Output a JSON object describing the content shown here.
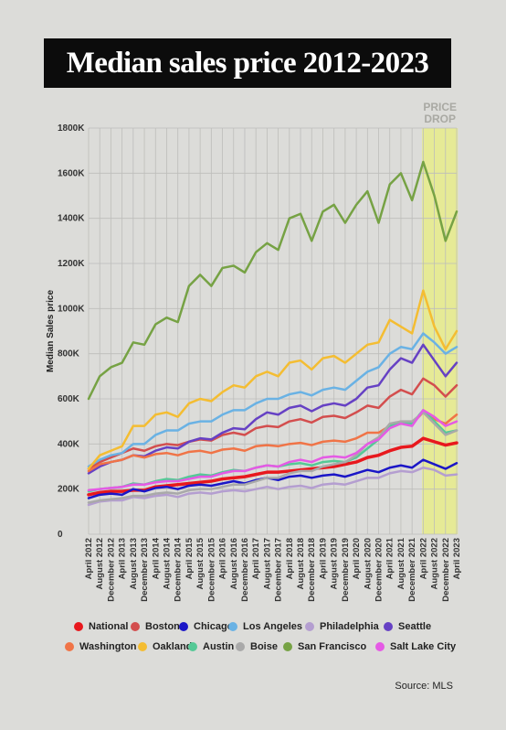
{
  "title": "Median sales price 2012-2023",
  "source": "Source: MLS",
  "chart_data": {
    "type": "line",
    "ylabel": "Median Sales price",
    "xlabel": "",
    "ylim": [
      0,
      1800000
    ],
    "yticks": [
      0,
      200000,
      400000,
      600000,
      800000,
      1000000,
      1200000,
      1400000,
      1600000,
      1800000
    ],
    "ytick_labels": [
      "0",
      "200K",
      "400K",
      "600K",
      "800K",
      "1000K",
      "1200K",
      "1400K",
      "1600K",
      "1800K"
    ],
    "xtick_labels": [
      "April 2012",
      "August 2012",
      "December 2012",
      "April 2013",
      "August 2013",
      "December 2013",
      "April 2014",
      "August 2014",
      "December 2014",
      "April 2015",
      "August 2015",
      "December 2015",
      "April 2016",
      "August 2016",
      "December 2016",
      "April 2017",
      "August 2017",
      "December 2017",
      "April 2018",
      "August 2018",
      "December 2018",
      "April 2019",
      "August 2019",
      "December 2019",
      "April 2020",
      "August 2020",
      "December 2020",
      "April 2021",
      "August 2021",
      "December 2021",
      "April 2022",
      "August 2022",
      "December 2022",
      "April 2023"
    ],
    "grid": true,
    "legend_position": "bottom",
    "highlight": {
      "label": "PRICE DROP",
      "from": "April 2022",
      "to": "April 2023",
      "color": "#e7eb8e"
    },
    "series": [
      {
        "name": "National",
        "color": "#e8181d",
        "values": [
          175000,
          185000,
          190000,
          190000,
          195000,
          195000,
          210000,
          215000,
          220000,
          225000,
          230000,
          235000,
          245000,
          250000,
          255000,
          265000,
          275000,
          275000,
          280000,
          285000,
          290000,
          295000,
          300000,
          310000,
          320000,
          340000,
          350000,
          370000,
          385000,
          390000,
          425000,
          410000,
          395000,
          405000
        ]
      },
      {
        "name": "Boston",
        "color": "#d34e4e",
        "values": [
          290000,
          320000,
          340000,
          360000,
          380000,
          370000,
          390000,
          400000,
          395000,
          410000,
          420000,
          415000,
          440000,
          450000,
          440000,
          470000,
          480000,
          475000,
          500000,
          510000,
          495000,
          520000,
          525000,
          515000,
          540000,
          570000,
          560000,
          610000,
          640000,
          620000,
          690000,
          660000,
          610000,
          660000
        ]
      },
      {
        "name": "Chicago",
        "color": "#1b16c7",
        "values": [
          160000,
          175000,
          180000,
          175000,
          200000,
          190000,
          205000,
          210000,
          200000,
          215000,
          220000,
          215000,
          225000,
          235000,
          225000,
          240000,
          250000,
          240000,
          255000,
          260000,
          250000,
          260000,
          265000,
          255000,
          270000,
          285000,
          275000,
          295000,
          305000,
          295000,
          330000,
          310000,
          290000,
          315000
        ]
      },
      {
        "name": "Los Angeles",
        "color": "#6ab2e4",
        "values": [
          300000,
          330000,
          350000,
          360000,
          400000,
          400000,
          440000,
          460000,
          460000,
          490000,
          500000,
          500000,
          530000,
          550000,
          550000,
          580000,
          600000,
          600000,
          620000,
          630000,
          615000,
          640000,
          650000,
          640000,
          680000,
          720000,
          740000,
          800000,
          830000,
          820000,
          890000,
          850000,
          800000,
          830000
        ]
      },
      {
        "name": "Philadelphia",
        "color": "#b49ed0",
        "values": [
          130000,
          145000,
          150000,
          150000,
          165000,
          160000,
          170000,
          175000,
          165000,
          180000,
          185000,
          180000,
          190000,
          195000,
          190000,
          200000,
          210000,
          200000,
          210000,
          215000,
          205000,
          220000,
          225000,
          220000,
          235000,
          250000,
          250000,
          270000,
          280000,
          275000,
          295000,
          285000,
          260000,
          265000
        ]
      },
      {
        "name": "Seattle",
        "color": "#6641c4",
        "values": [
          270000,
          300000,
          320000,
          330000,
          350000,
          345000,
          370000,
          385000,
          380000,
          410000,
          425000,
          420000,
          450000,
          470000,
          465000,
          510000,
          540000,
          530000,
          560000,
          570000,
          545000,
          570000,
          580000,
          570000,
          600000,
          650000,
          660000,
          730000,
          780000,
          760000,
          840000,
          770000,
          700000,
          760000
        ]
      },
      {
        "name": "Washington",
        "color": "#f07447",
        "values": [
          280000,
          310000,
          320000,
          330000,
          350000,
          340000,
          355000,
          360000,
          350000,
          365000,
          370000,
          360000,
          375000,
          380000,
          370000,
          390000,
          395000,
          390000,
          400000,
          405000,
          395000,
          410000,
          415000,
          410000,
          425000,
          450000,
          450000,
          480000,
          500000,
          490000,
          540000,
          510000,
          490000,
          530000
        ]
      },
      {
        "name": "Oakland",
        "color": "#f4bd32",
        "values": [
          290000,
          350000,
          370000,
          390000,
          480000,
          480000,
          530000,
          540000,
          520000,
          580000,
          600000,
          590000,
          630000,
          660000,
          650000,
          700000,
          720000,
          700000,
          760000,
          770000,
          730000,
          780000,
          790000,
          760000,
          800000,
          840000,
          850000,
          950000,
          920000,
          890000,
          1080000,
          920000,
          820000,
          900000
        ]
      },
      {
        "name": "Austin",
        "color": "#55c996",
        "values": [
          190000,
          200000,
          205000,
          210000,
          225000,
          220000,
          235000,
          245000,
          240000,
          255000,
          265000,
          260000,
          275000,
          285000,
          280000,
          295000,
          305000,
          300000,
          310000,
          315000,
          305000,
          320000,
          325000,
          320000,
          340000,
          380000,
          420000,
          480000,
          500000,
          490000,
          550000,
          500000,
          450000,
          460000
        ]
      },
      {
        "name": "Boise",
        "color": "#a9a9a9",
        "values": [
          140000,
          150000,
          155000,
          160000,
          170000,
          170000,
          180000,
          185000,
          180000,
          195000,
          200000,
          200000,
          210000,
          220000,
          220000,
          235000,
          250000,
          250000,
          270000,
          280000,
          280000,
          300000,
          310000,
          320000,
          350000,
          400000,
          430000,
          490000,
          500000,
          500000,
          540000,
          490000,
          440000,
          460000
        ]
      },
      {
        "name": "San Francisco",
        "color": "#76a244",
        "values": [
          600000,
          700000,
          740000,
          760000,
          850000,
          840000,
          930000,
          960000,
          940000,
          1100000,
          1150000,
          1100000,
          1180000,
          1190000,
          1160000,
          1250000,
          1290000,
          1260000,
          1400000,
          1420000,
          1300000,
          1430000,
          1460000,
          1380000,
          1460000,
          1520000,
          1380000,
          1550000,
          1600000,
          1480000,
          1650000,
          1500000,
          1300000,
          1430000
        ]
      },
      {
        "name": "Salt Lake City",
        "color": "#e55ae5",
        "values": [
          195000,
          200000,
          205000,
          210000,
          220000,
          220000,
          230000,
          235000,
          235000,
          245000,
          255000,
          255000,
          270000,
          280000,
          280000,
          295000,
          305000,
          300000,
          320000,
          330000,
          320000,
          340000,
          345000,
          340000,
          360000,
          400000,
          420000,
          470000,
          490000,
          480000,
          550000,
          520000,
          480000,
          500000
        ]
      }
    ]
  }
}
